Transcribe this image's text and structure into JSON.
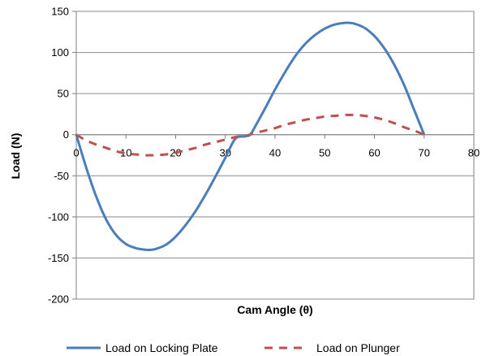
{
  "chart_data": {
    "type": "line",
    "title": "",
    "xlabel": "Cam Angle (θ)",
    "ylabel": "Load (N)",
    "xlim": [
      0,
      80
    ],
    "ylim": [
      -200,
      150
    ],
    "x_ticks": [
      "0",
      "10",
      "20",
      "30",
      "40",
      "50",
      "60",
      "70",
      "80"
    ],
    "y_ticks": [
      "150",
      "100",
      "50",
      "0",
      "-50",
      "-100",
      "-150",
      "-200"
    ],
    "grid": "horizontal",
    "legend_position": "bottom",
    "series": [
      {
        "name": "Load on Locking Plate",
        "color": "#4a7ebb",
        "style": "solid",
        "x": [
          0,
          2,
          4,
          6,
          8,
          10,
          12,
          14,
          15,
          16,
          18,
          20,
          22,
          24,
          26,
          28,
          30,
          32,
          34,
          35,
          36,
          38,
          40,
          42,
          44,
          46,
          48,
          50,
          52,
          54,
          55,
          56,
          58,
          60,
          62,
          64,
          66,
          68,
          70
        ],
        "y": [
          0,
          -40,
          -75,
          -103,
          -122,
          -133,
          -138,
          -140,
          -140,
          -139,
          -134,
          -124,
          -110,
          -93,
          -73,
          -51,
          -28,
          -5,
          -2,
          0,
          10,
          32,
          55,
          76,
          95,
          110,
          121,
          129,
          134,
          136,
          136,
          135,
          130,
          120,
          105,
          85,
          60,
          30,
          0
        ]
      },
      {
        "name": "Load on Plunger",
        "color": "#c0504d",
        "style": "dashed",
        "x": [
          0,
          2,
          4,
          6,
          8,
          10,
          12,
          14,
          15,
          16,
          18,
          20,
          22,
          24,
          26,
          28,
          30,
          32,
          34,
          35,
          36,
          38,
          40,
          42,
          44,
          46,
          48,
          50,
          52,
          54,
          55,
          56,
          58,
          60,
          62,
          64,
          66,
          68,
          70
        ],
        "y": [
          0,
          -7,
          -12,
          -16,
          -20,
          -23,
          -24,
          -25,
          -25,
          -25,
          -24,
          -22,
          -19,
          -16,
          -12,
          -9,
          -6,
          -3,
          -1,
          0,
          2,
          5,
          8,
          12,
          15,
          18,
          20,
          22,
          23,
          24,
          24,
          24,
          23,
          21,
          18,
          14,
          9,
          5,
          0
        ]
      }
    ]
  }
}
